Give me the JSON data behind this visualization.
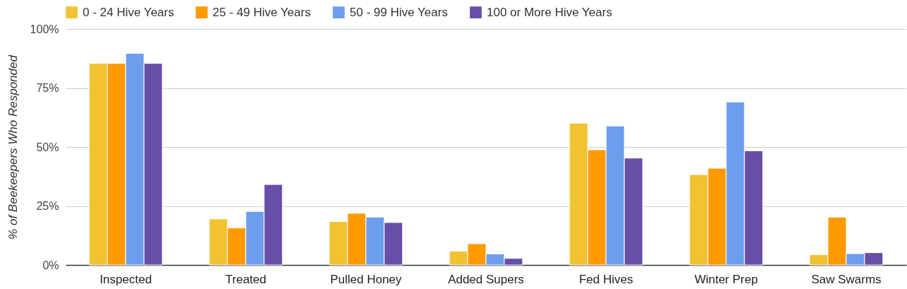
{
  "chart_data": {
    "type": "bar",
    "ylabel": "% of Beekeepers Who Responded",
    "categories": [
      "Inspected",
      "Treated",
      "Pulled Honey",
      "Added Supers",
      "Fed Hives",
      "Winter Prep",
      "Saw Swarms"
    ],
    "series": [
      {
        "name": "0 - 24 Hive Years",
        "color": "#f1c232",
        "values": [
          85.4,
          19.5,
          18.4,
          5.9,
          60.1,
          38.3,
          4.4
        ]
      },
      {
        "name": "25 - 49 Hive Years",
        "color": "#ff9900",
        "values": [
          85.4,
          15.7,
          21.9,
          9.0,
          48.8,
          41.0,
          20.3
        ]
      },
      {
        "name": "50 - 99 Hive Years",
        "color": "#6d9eeb",
        "values": [
          89.7,
          22.7,
          20.3,
          4.7,
          58.9,
          69.1,
          4.8
        ]
      },
      {
        "name": "100 or More Hive Years",
        "color": "#674ea7",
        "values": [
          85.4,
          34.1,
          18.0,
          2.8,
          45.3,
          48.4,
          5.2
        ]
      }
    ],
    "ylim": [
      0,
      100
    ],
    "yticks": [
      {
        "value": 0,
        "label": "0%"
      },
      {
        "value": 25,
        "label": "25%"
      },
      {
        "value": 50,
        "label": "50%"
      },
      {
        "value": 75,
        "label": "75%"
      },
      {
        "value": 100,
        "label": "100%"
      }
    ],
    "grid": "y",
    "legend": "top left"
  }
}
